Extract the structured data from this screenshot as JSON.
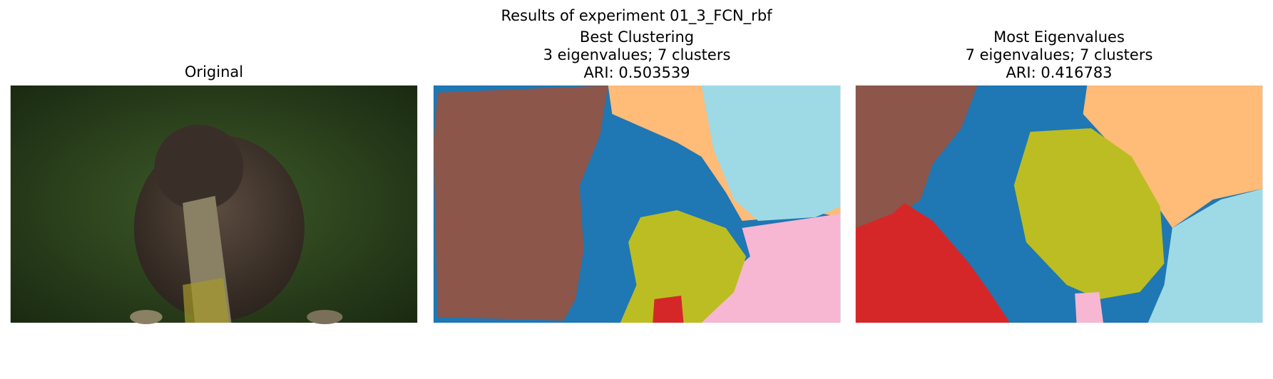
{
  "title": "Results of experiment 01_3_FCN_rbf",
  "panels": [
    {
      "lines": [
        "Original"
      ]
    },
    {
      "lines": [
        "Best Clustering",
        "3 eigenvalues; 7 clusters",
        "ARI: 0.503539"
      ]
    },
    {
      "lines": [
        "Most Eigenvalues",
        "7 eigenvalues; 7 clusters",
        "ARI: 0.416783"
      ]
    }
  ]
}
